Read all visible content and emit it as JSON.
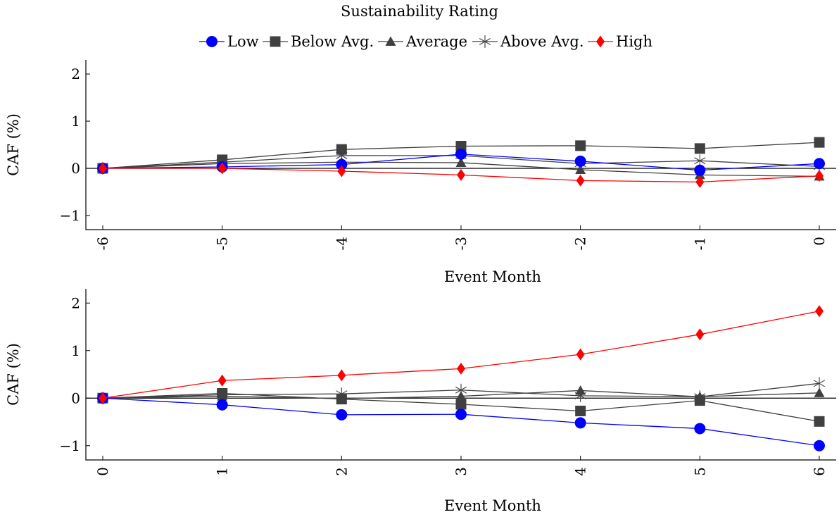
{
  "legend_title": "Sustainability Rating",
  "colors": {
    "Low": "#0000ff",
    "Below Avg.": "#404040",
    "Average": "#404040",
    "Above Avg.": "#404040",
    "High": "#ff0000"
  },
  "markers": {
    "Low": "circle",
    "Below Avg.": "square",
    "Average": "triangle",
    "Above Avg.": "asterisk",
    "High": "diamond"
  },
  "chart_data": [
    {
      "type": "line",
      "xlabel": "Event Month",
      "ylabel": "CAF (%)",
      "x": [
        "-6",
        "-5",
        "-4",
        "-3",
        "-2",
        "-1",
        "0"
      ],
      "ylim": [
        -1.3,
        2.3
      ],
      "yticks": [
        -1,
        0,
        1,
        2
      ],
      "ytick_labels": [
        "−1",
        "0",
        "1",
        "2"
      ],
      "series": [
        {
          "name": "Low",
          "values": [
            0,
            0.03,
            0.08,
            0.3,
            0.15,
            -0.04,
            0.1
          ]
        },
        {
          "name": "Below Avg.",
          "values": [
            0,
            0.18,
            0.4,
            0.47,
            0.48,
            0.42,
            0.55
          ]
        },
        {
          "name": "Average",
          "values": [
            0,
            0.1,
            0.13,
            0.12,
            -0.03,
            -0.14,
            -0.17
          ]
        },
        {
          "name": "Above Avg.",
          "values": [
            0,
            0.13,
            0.27,
            0.27,
            0.1,
            0.16,
            0.04
          ]
        },
        {
          "name": "High",
          "values": [
            0,
            0.0,
            -0.06,
            -0.14,
            -0.26,
            -0.29,
            -0.16
          ]
        }
      ]
    },
    {
      "type": "line",
      "xlabel": "Event Month",
      "ylabel": "CAF (%)",
      "x": [
        "0",
        "1",
        "2",
        "3",
        "4",
        "5",
        "6"
      ],
      "ylim": [
        -1.3,
        2.3
      ],
      "yticks": [
        -1,
        0,
        1,
        2
      ],
      "ytick_labels": [
        "−1",
        "0",
        "1",
        "2"
      ],
      "series": [
        {
          "name": "Low",
          "values": [
            0,
            -0.14,
            -0.35,
            -0.34,
            -0.52,
            -0.64,
            -1.0
          ]
        },
        {
          "name": "Below Avg.",
          "values": [
            0,
            0.1,
            -0.02,
            -0.13,
            -0.27,
            -0.05,
            -0.49
          ]
        },
        {
          "name": "Average",
          "values": [
            0,
            0.04,
            -0.01,
            0.04,
            0.16,
            0.03,
            0.11
          ]
        },
        {
          "name": "Above Avg.",
          "values": [
            0,
            0.07,
            0.09,
            0.17,
            0.05,
            0.03,
            0.31
          ]
        },
        {
          "name": "High",
          "values": [
            0,
            0.37,
            0.48,
            0.62,
            0.92,
            1.34,
            1.83
          ]
        }
      ]
    }
  ]
}
